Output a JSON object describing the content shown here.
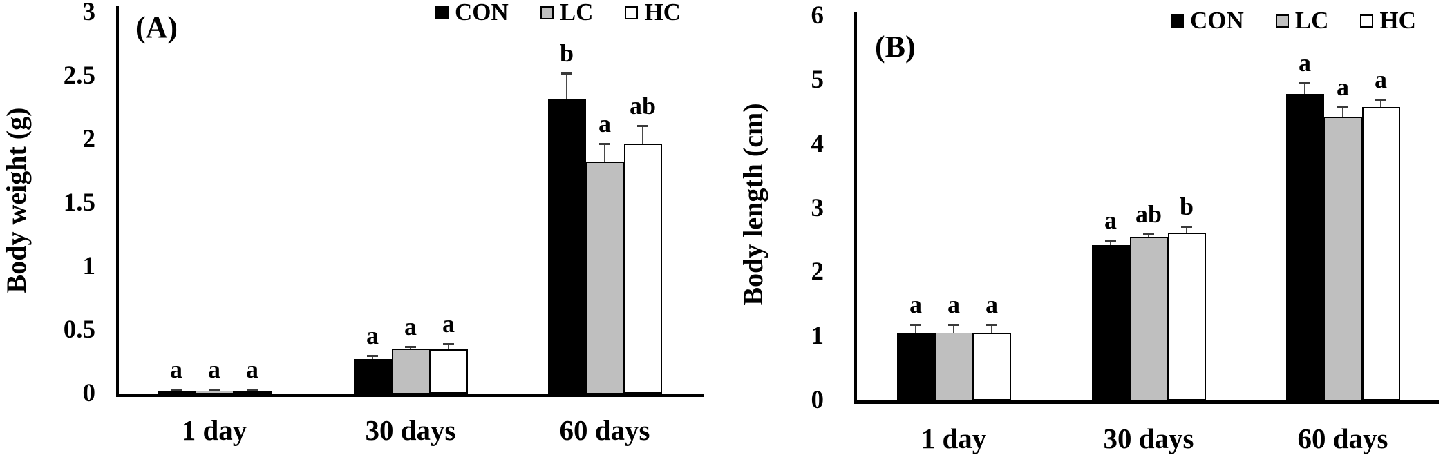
{
  "figure": {
    "background": "#ffffff",
    "axis_color": "#000000",
    "error_bar_color": "#4a4a4a",
    "series_styles": {
      "CON": {
        "fill": "#000000",
        "border_color": null
      },
      "LC": {
        "fill": "#bfbfbf",
        "border_color": "#000000"
      },
      "HC": {
        "fill": "#ffffff",
        "border_color": "#000000"
      }
    }
  },
  "chart_data": [
    {
      "id": "A",
      "type": "bar",
      "panel_label": "(A)",
      "title": "",
      "xlabel": "",
      "ylabel": "Body weight (g)",
      "ylim": [
        0,
        3
      ],
      "ytick_labels": [
        "0",
        "0.5",
        "1",
        "1.5",
        "2",
        "2.5",
        "3"
      ],
      "grid": false,
      "legend_position": "top",
      "legend": [
        "CON",
        "LC",
        "HC"
      ],
      "categories": [
        "1 day",
        "30 days",
        "60 days"
      ],
      "series": [
        {
          "name": "CON",
          "values": [
            0.02,
            0.27,
            2.32
          ],
          "errors": [
            0.01,
            0.03,
            0.2
          ],
          "sig_letters": [
            "a",
            "a",
            "b"
          ]
        },
        {
          "name": "LC",
          "values": [
            0.02,
            0.35,
            1.82
          ],
          "errors": [
            0.01,
            0.02,
            0.15
          ],
          "sig_letters": [
            "a",
            "a",
            "a"
          ]
        },
        {
          "name": "HC",
          "values": [
            0.02,
            0.35,
            1.97
          ],
          "errors": [
            0.01,
            0.04,
            0.14
          ],
          "sig_letters": [
            "a",
            "a",
            "ab"
          ]
        }
      ]
    },
    {
      "id": "B",
      "type": "bar",
      "panel_label": "(B)",
      "title": "",
      "xlabel": "",
      "ylabel": "Body length (cm)",
      "ylim": [
        0,
        6
      ],
      "ytick_labels": [
        "0",
        "1",
        "2",
        "3",
        "4",
        "5",
        "6"
      ],
      "grid": false,
      "legend_position": "top",
      "legend": [
        "CON",
        "LC",
        "HC"
      ],
      "categories": [
        "1 day",
        "30 days",
        "60 days"
      ],
      "series": [
        {
          "name": "CON",
          "values": [
            1.06,
            2.42,
            4.78
          ],
          "errors": [
            0.12,
            0.08,
            0.18
          ],
          "sig_letters": [
            "a",
            "a",
            "a"
          ]
        },
        {
          "name": "LC",
          "values": [
            1.06,
            2.55,
            4.42
          ],
          "errors": [
            0.12,
            0.05,
            0.16
          ],
          "sig_letters": [
            "a",
            "ab",
            "a"
          ]
        },
        {
          "name": "HC",
          "values": [
            1.06,
            2.62,
            4.58
          ],
          "errors": [
            0.12,
            0.1,
            0.12
          ],
          "sig_letters": [
            "a",
            "b",
            "a"
          ]
        }
      ]
    }
  ]
}
